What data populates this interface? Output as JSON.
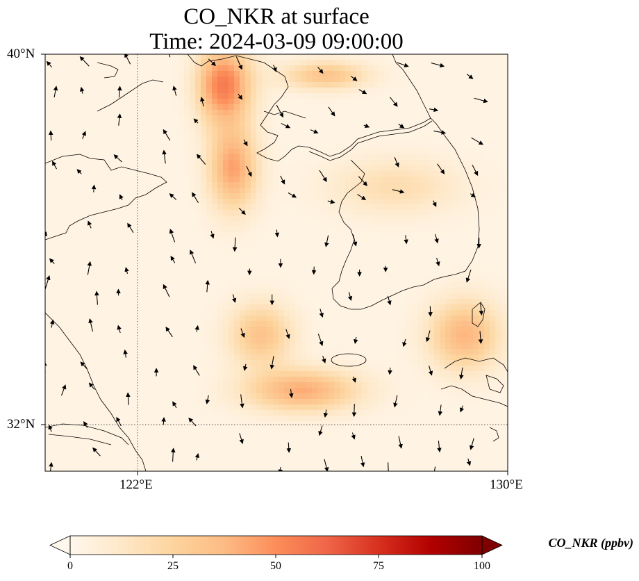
{
  "title": {
    "line1": "CO_NKR at surface",
    "line2": "Time: 2024-03-09 09:00:00"
  },
  "map": {
    "lat_range": [
      31.0,
      40.0
    ],
    "lon_range": [
      120.0,
      130.0
    ],
    "lat_ticks": [
      "40°N",
      "32°N"
    ],
    "lon_ticks": [
      "122°E",
      "130°E"
    ],
    "gridlines": {
      "lon": 122,
      "lat": 32,
      "style": "dotted"
    }
  },
  "colorbar": {
    "label": "CO_NKR (ppbv)",
    "ticks": [
      "0",
      "25",
      "50",
      "75",
      "100"
    ],
    "range": [
      0,
      100
    ],
    "extend": "both",
    "colormap": "OrRd",
    "colors": [
      "#fff7ec",
      "#fee8c8",
      "#fdd49e",
      "#fdbb84",
      "#fc8d59",
      "#ef6548",
      "#d7301f",
      "#b30000",
      "#7f0000"
    ]
  },
  "field": {
    "plume_peak_ppbv": 55,
    "features": [
      {
        "region": "plume centred near 123.8°E, 39.4°N",
        "value_ppbv": 52
      },
      {
        "region": "band along 124°E, 37–38°N",
        "value_ppbv": 45
      },
      {
        "region": "arc centred near 125.5°E, 32.8°N",
        "value_ppbv": 40
      },
      {
        "region": "east of Korea near 129°E, 34°N",
        "value_ppbv": 35
      },
      {
        "region": "western China coast",
        "value_ppbv": 2
      }
    ]
  },
  "wind_arrows": "black quiver vectors scattered over domain",
  "coastline_color": "#000000"
}
